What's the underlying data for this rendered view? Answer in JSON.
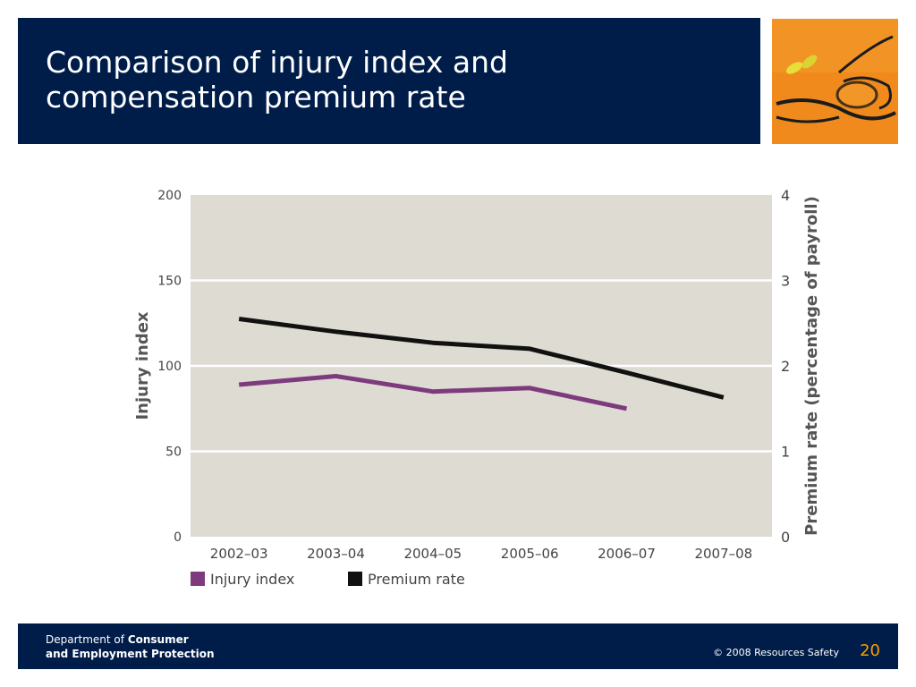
{
  "slide": {
    "title": "Comparison of injury index and\ncompensation premium rate",
    "page_number": "20"
  },
  "footer": {
    "dept_prefix": "Department of ",
    "dept_bold_1": "Consumer",
    "dept_bold_2": "and Employment Protection",
    "copyright": "© 2008 Resources Safety"
  },
  "colors": {
    "title_bg": "#001d4a",
    "plot_bg": "#dedbd3",
    "injury_series": "#7d3a7c",
    "premium_series": "#111111",
    "photo_accent": "#f08a1c"
  },
  "chart_data": {
    "type": "line",
    "categories": [
      "2002–03",
      "2003–04",
      "2004–05",
      "2005–06",
      "2006–07",
      "2007–08"
    ],
    "ylabel": "Injury index",
    "y2label": "Premium rate (percentage of payroll)",
    "ylim": [
      0,
      200
    ],
    "yticks": [
      "0",
      "50",
      "100",
      "150",
      "200"
    ],
    "y2lim": [
      0,
      4
    ],
    "y2ticks": [
      "0",
      "1",
      "2",
      "3",
      "4"
    ],
    "grid": true,
    "legend_position": "bottom-left",
    "series": [
      {
        "name": "Injury index",
        "axis": "left",
        "values": [
          89,
          94,
          85,
          87,
          75,
          null
        ]
      },
      {
        "name": "Premium rate",
        "axis": "right",
        "values": [
          2.55,
          2.4,
          2.27,
          2.2,
          1.92,
          1.63
        ]
      }
    ]
  }
}
